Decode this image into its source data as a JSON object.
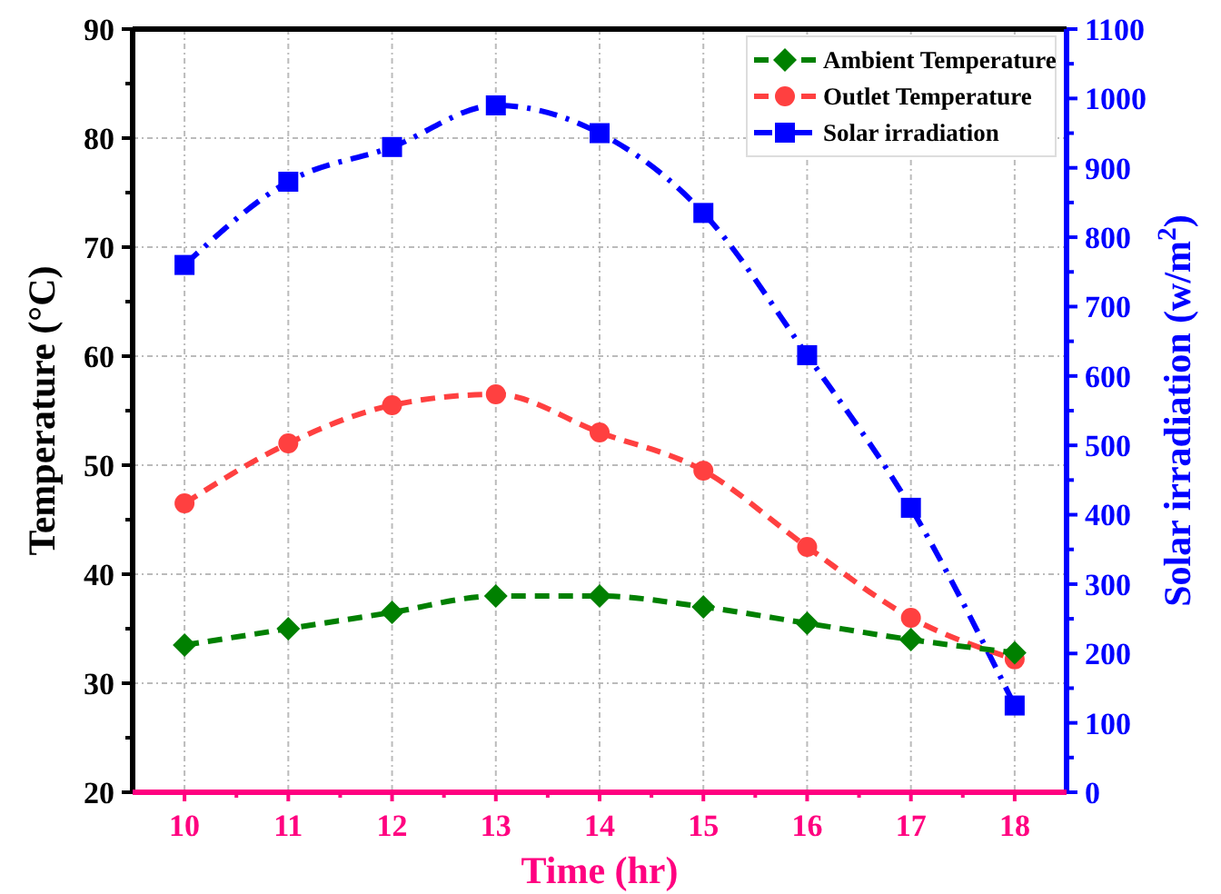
{
  "chart_data": {
    "type": "line",
    "xlabel": "Time (hr)",
    "ylabel": "Temperature (°C)",
    "y2label": "Solar irradiation (w/m$^{2}$)",
    "x": [
      10,
      11,
      12,
      13,
      14,
      15,
      16,
      17,
      18
    ],
    "xlim": [
      9.5,
      18.5
    ],
    "xticks": [
      10,
      {
        "value": 10.5,
        "label": null
      },
      11,
      {
        "value": 11.5,
        "label": null
      },
      12,
      {
        "value": 12.5,
        "label": null
      },
      13,
      {
        "value": 13.5,
        "label": null
      },
      14,
      {
        "value": 14.5,
        "label": null
      },
      15,
      {
        "value": 15.5,
        "label": null
      },
      16,
      {
        "value": 16.5,
        "label": null
      },
      17,
      {
        "value": 17.5,
        "label": null
      },
      18
    ],
    "ylim": [
      20,
      90
    ],
    "yticks": [
      20,
      {
        "value": 25,
        "label": null
      },
      30,
      {
        "value": 35,
        "label": null
      },
      40,
      {
        "value": 45,
        "label": null
      },
      50,
      {
        "value": 55,
        "label": null
      },
      60,
      {
        "value": 65,
        "label": null
      },
      70,
      {
        "value": 75,
        "label": null
      },
      80,
      {
        "value": 85,
        "label": null
      },
      90
    ],
    "y2lim": [
      0,
      1100
    ],
    "y2ticks": [
      0,
      {
        "value": 50,
        "label": null
      },
      100,
      {
        "value": 150,
        "label": null
      },
      200,
      {
        "value": 250,
        "label": null
      },
      300,
      {
        "value": 350,
        "label": null
      },
      400,
      {
        "value": 450,
        "label": null
      },
      500,
      {
        "value": 550,
        "label": null
      },
      600,
      {
        "value": 650,
        "label": null
      },
      700,
      {
        "value": 750,
        "label": null
      },
      800,
      {
        "value": 850,
        "label": null
      },
      900,
      {
        "value": 950,
        "label": null
      },
      1000,
      {
        "value": 1050,
        "label": null
      },
      1100
    ],
    "grid": true,
    "legend": "top right",
    "series": [
      {
        "name": "Ambient Temperature",
        "color": "#008000",
        "marker": "diamond",
        "line_style": "dashed",
        "values": [
          33.5,
          35,
          36.5,
          38,
          38,
          37,
          35.5,
          34,
          32.8
        ]
      },
      {
        "name": "Outlet Temperature",
        "color": "#ff4040",
        "marker": "circle",
        "line_style": "dashed",
        "values": [
          46.5,
          52,
          55.5,
          56.5,
          53,
          49.5,
          42.5,
          36,
          32.2
        ]
      },
      {
        "name": "Solar irradiation",
        "color": "#0000ff",
        "marker": "square",
        "line_style": "dashdot",
        "axis": "y2",
        "values": [
          760,
          880,
          930,
          990,
          950,
          835,
          630,
          410,
          125
        ]
      }
    ]
  }
}
